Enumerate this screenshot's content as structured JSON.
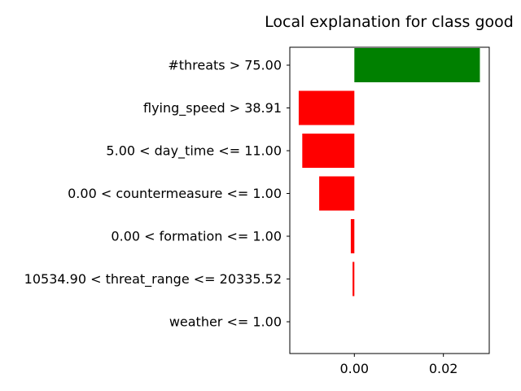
{
  "chart_data": {
    "type": "bar",
    "orientation": "horizontal",
    "title": "Local explanation for class good",
    "xlabel": "",
    "ylabel": "",
    "categories": [
      "#threats > 75.00",
      "flying_speed > 38.91",
      "5.00 < day_time <= 11.00",
      "0.00 < countermeasure <= 1.00",
      "0.00 < formation <= 1.00",
      "10534.90 < threat_range <= 20335.52",
      "weather <= 1.00"
    ],
    "values": [
      0.0282,
      -0.0125,
      -0.0117,
      -0.0079,
      -0.0008,
      -0.0004,
      0.0
    ],
    "xlim": [
      -0.0145,
      0.0303
    ],
    "xticks": [
      0.0,
      0.02
    ],
    "xtick_labels": [
      "0.00",
      "0.02"
    ],
    "grid": false,
    "colors": {
      "positive": "#008000",
      "negative": "#ff0000"
    }
  }
}
